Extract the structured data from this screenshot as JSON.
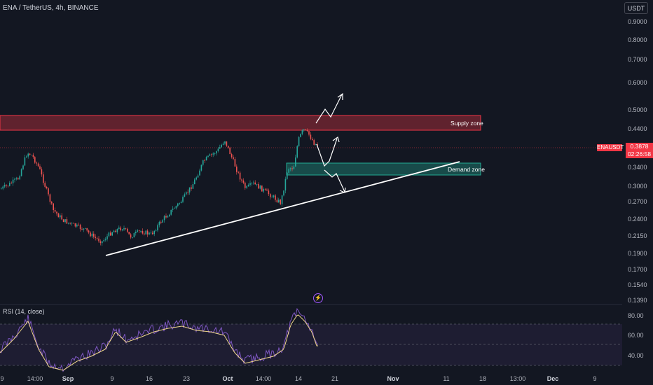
{
  "header": {
    "symbol_title": "ENA / TetherUS, 4h, BINANCE"
  },
  "price_axis": {
    "currency": "USDT",
    "labels": [
      "0.9000",
      "0.8000",
      "0.7000",
      "0.6000",
      "0.5000",
      "0.4400",
      "0.3878",
      "0.3400",
      "0.3000",
      "0.2700",
      "0.2400",
      "0.2150",
      "0.1900",
      "0.1700",
      "0.1540",
      "0.1390"
    ]
  },
  "last_price": {
    "ticker": "ENAUSDT",
    "price": "0.3878",
    "countdown": "02:26:58",
    "color": "#f23645"
  },
  "zones": {
    "supply": {
      "label": "Supply zone",
      "color": "#f23645"
    },
    "demand": {
      "label": "Demand zone",
      "color": "#22ab94"
    }
  },
  "rsi": {
    "title": "RSI (14, close)",
    "levels": [
      "80.00",
      "60.00",
      "40.00"
    ],
    "line_color": "#7e57c2",
    "ma_color": "#f0d78c"
  },
  "date_axis": {
    "labels": [
      {
        "text": "9",
        "bold": false
      },
      {
        "text": "14:00",
        "bold": false
      },
      {
        "text": "Sep",
        "bold": true
      },
      {
        "text": "9",
        "bold": false
      },
      {
        "text": "16",
        "bold": false
      },
      {
        "text": "23",
        "bold": false
      },
      {
        "text": "Oct",
        "bold": true
      },
      {
        "text": "14:00",
        "bold": false
      },
      {
        "text": "14",
        "bold": false
      },
      {
        "text": "21",
        "bold": false
      },
      {
        "text": "Nov",
        "bold": true
      },
      {
        "text": "11",
        "bold": false
      },
      {
        "text": "18",
        "bold": false
      },
      {
        "text": "13:00",
        "bold": false
      },
      {
        "text": "Dec",
        "bold": true
      },
      {
        "text": "9",
        "bold": false
      }
    ]
  },
  "colors": {
    "up": "#26a69a",
    "down": "#ef5350",
    "background": "#131722"
  }
}
